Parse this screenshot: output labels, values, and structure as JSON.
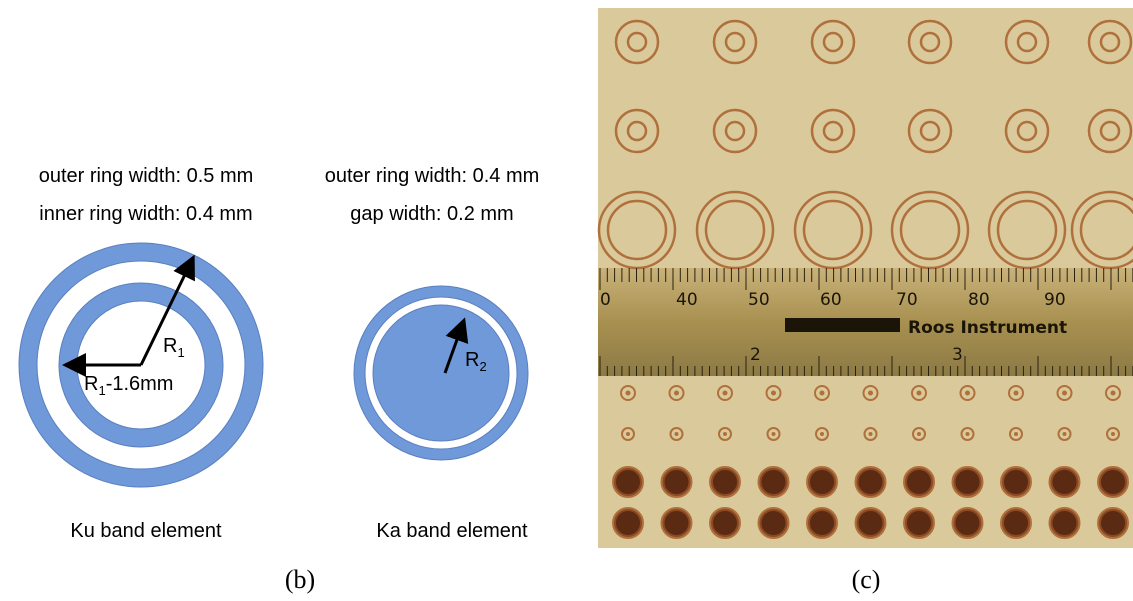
{
  "panel_b": {
    "ku": {
      "line1": "outer ring width: 0.5 mm",
      "line2": "inner ring width: 0.4 mm",
      "r_base": "R",
      "r_sub": "1",
      "r2_base": "R",
      "r2_sub": "1",
      "r2_rest": "-1.6mm",
      "caption": "Ku band element"
    },
    "ka": {
      "line1": "outer ring width: 0.4 mm",
      "line2": "gap width: 0.2 mm",
      "r_base": "R",
      "r_sub": "2",
      "caption": "Ka band element"
    },
    "label": "(b)"
  },
  "panel_c": {
    "ruler_top": [
      "0",
      "40",
      "50",
      "60",
      "70",
      "80",
      "90"
    ],
    "brand": "Roos  Instrument",
    "ruler_bottom": [
      "2",
      "3"
    ],
    "label": "(c)"
  }
}
